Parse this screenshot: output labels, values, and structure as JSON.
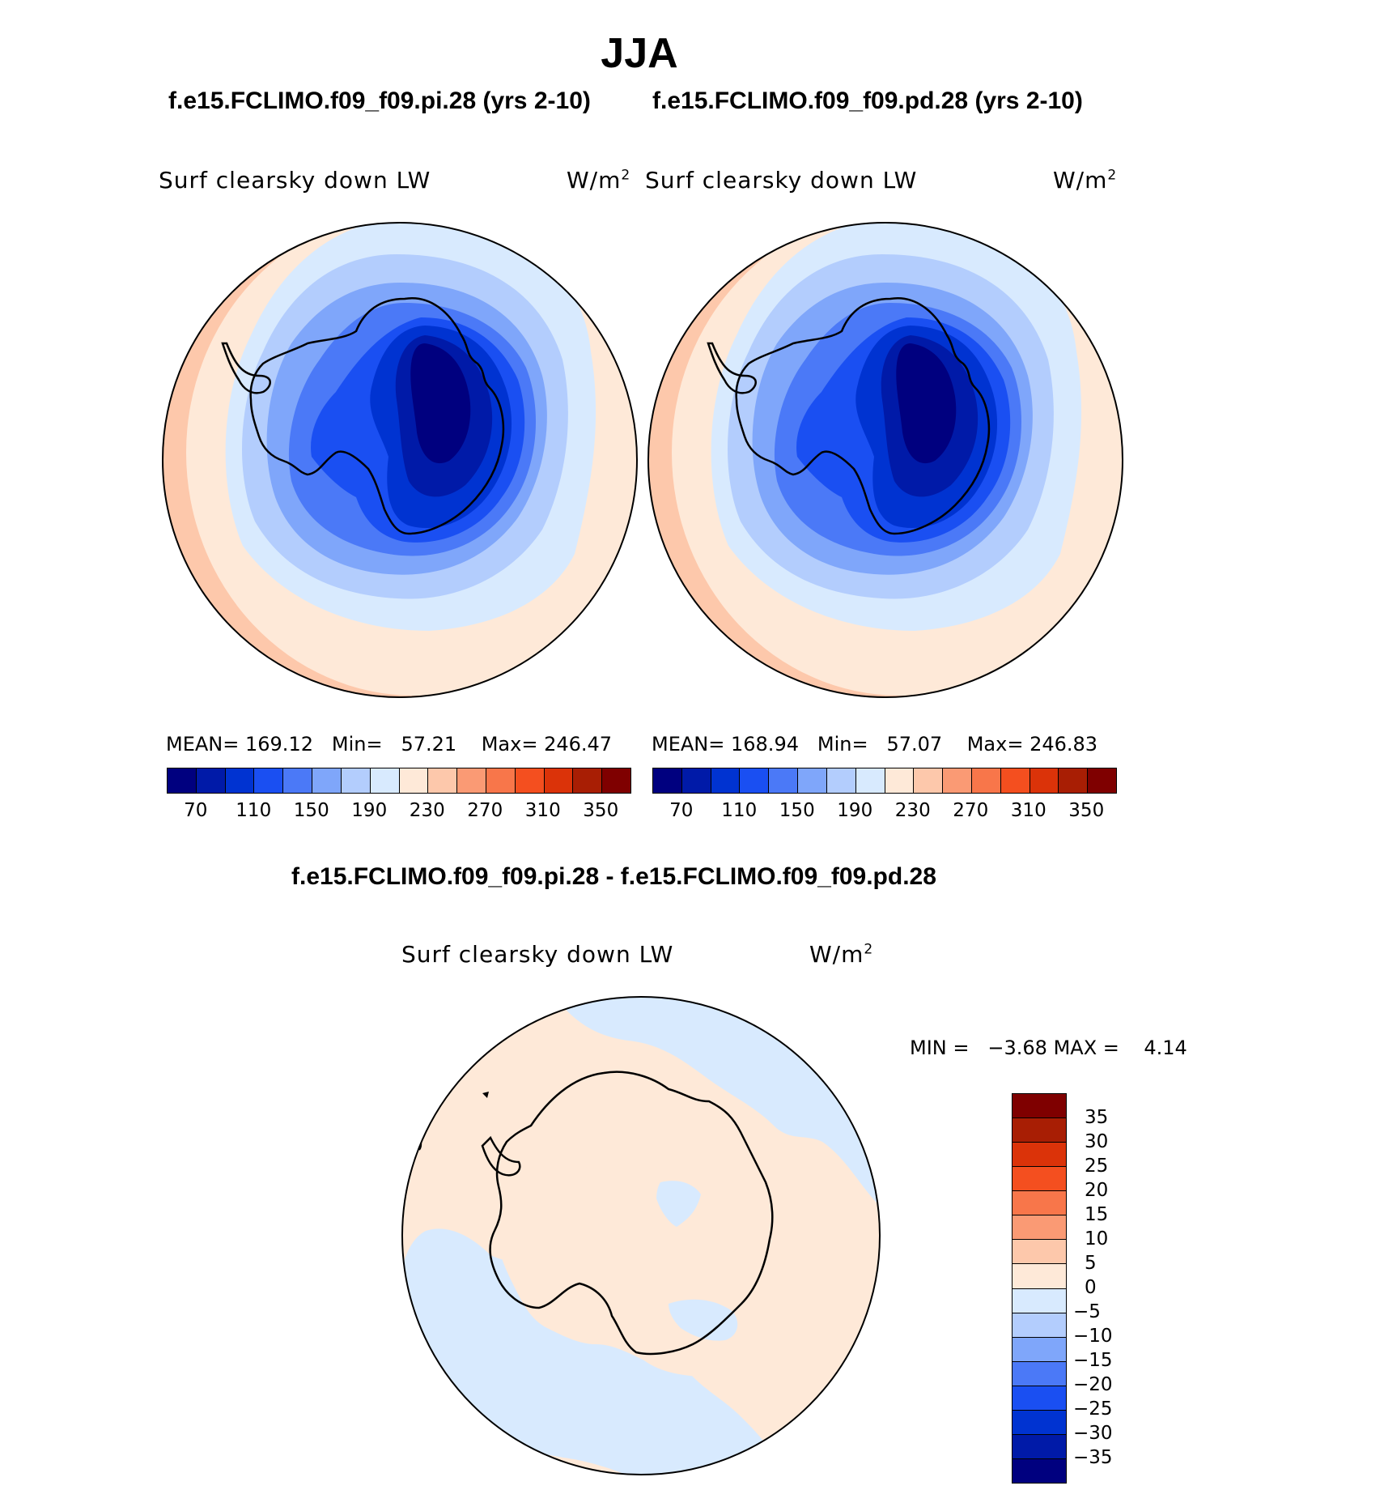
{
  "title": "JJA",
  "cases": {
    "left": "f.e15.FCLIMO.f09_f09.pi.28 (yrs 2-10)",
    "right": "f.e15.FCLIMO.f09_f09.pd.28 (yrs 2-10)",
    "diff": "f.e15.FCLIMO.f09_f09.pi.28 - f.e15.FCLIMO.f09_f09.pd.28"
  },
  "variable": "Surf clearsky down LW",
  "units": {
    "base": "W/m",
    "exp": "2"
  },
  "panels": [
    {
      "mean_label": "MEAN=",
      "mean": "169.12",
      "min_label": "Min=",
      "min": "57.21",
      "max_label": "Max=",
      "max": "246.47"
    },
    {
      "mean_label": "MEAN=",
      "mean": "168.94",
      "min_label": "Min=",
      "min": "57.07",
      "max_label": "Max=",
      "max": "246.83"
    }
  ],
  "diff_stats": {
    "min_label": "MIN =",
    "min": "−3.68",
    "max_label": "MAX =",
    "max": "4.14"
  },
  "colorbar_main": {
    "ticks": [
      "70",
      "110",
      "150",
      "190",
      "230",
      "270",
      "310",
      "350"
    ],
    "colors": [
      "#00007f",
      "#001aa8",
      "#0033d1",
      "#1a4ff2",
      "#4b79f7",
      "#7fa6fa",
      "#b3cdfd",
      "#d8eafe",
      "#fee9d8",
      "#fdc8ab",
      "#fa9a74",
      "#f8764a",
      "#f44f1f",
      "#db3309",
      "#a81e04",
      "#7f0000"
    ]
  },
  "colorbar_diff": {
    "ticks": [
      "35",
      "30",
      "25",
      "20",
      "15",
      "10",
      "5",
      "0",
      "−5",
      "−10",
      "−15",
      "−20",
      "−25",
      "−30",
      "−35"
    ],
    "colors": [
      "#7f0000",
      "#a81e04",
      "#db3309",
      "#f44f1f",
      "#f8764a",
      "#fa9a74",
      "#fdc8ab",
      "#fee9d8",
      "#d8eafe",
      "#b3cdfd",
      "#7fa6fa",
      "#4b79f7",
      "#1a4ff2",
      "#0033d1",
      "#001aa8",
      "#00007f"
    ]
  }
}
